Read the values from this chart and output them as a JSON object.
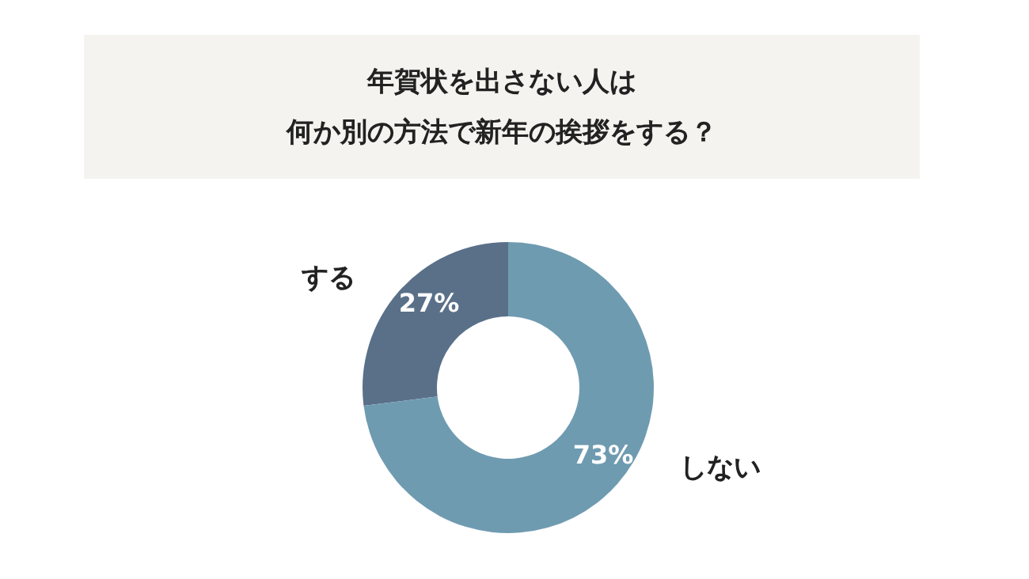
{
  "chart_data": {
    "type": "donut",
    "title": "年賀状を出さない人は何か別の方法で新年の挨拶をする？",
    "categories": [
      "する",
      "しない"
    ],
    "values": [
      27,
      73
    ],
    "colors": [
      "#5a7089",
      "#6f9bb1"
    ],
    "value_labels": [
      "27%",
      "73%"
    ],
    "legend": false
  }
}
